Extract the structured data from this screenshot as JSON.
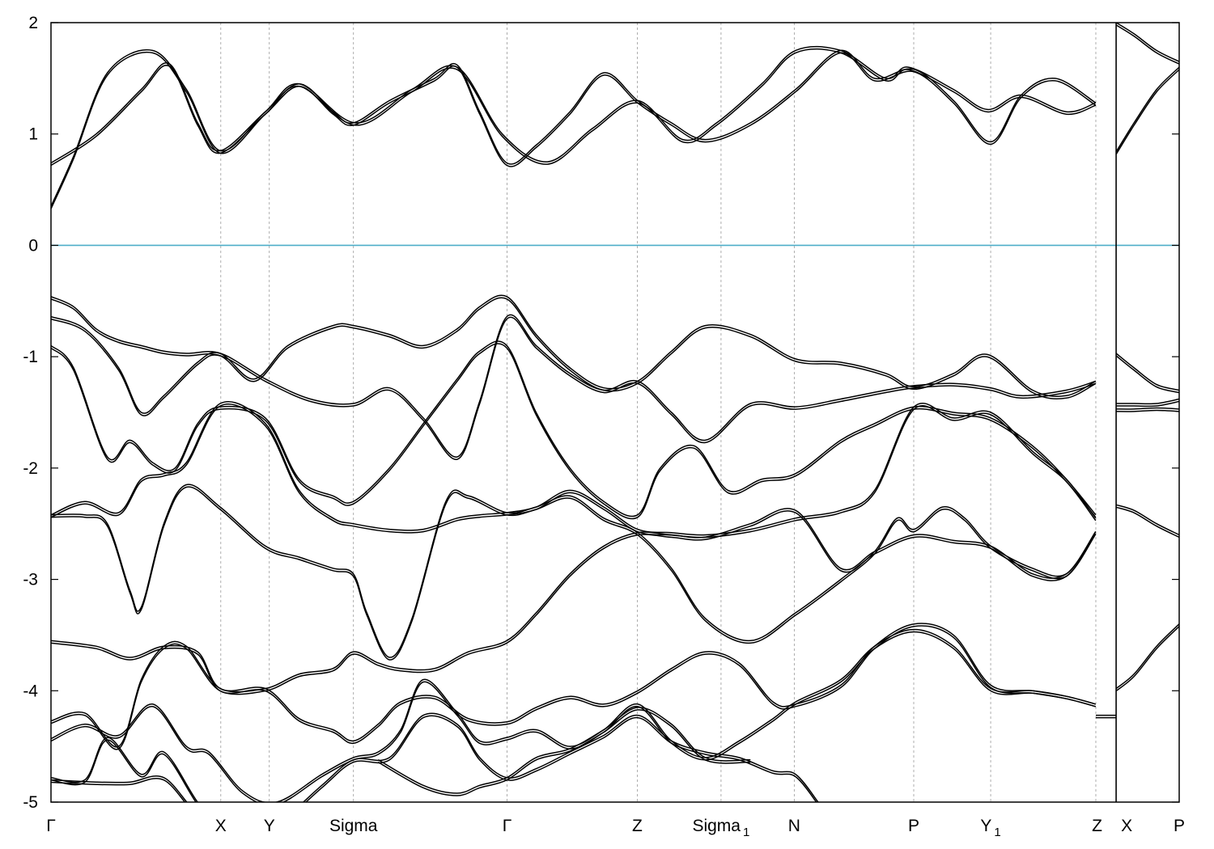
{
  "chart_data": {
    "type": "line",
    "title": "",
    "xlabel": "",
    "ylabel": "",
    "xlim": [
      0,
      1.0
    ],
    "ylim": [
      -5,
      2
    ],
    "yticks": [
      "2",
      "1",
      "0",
      "-1",
      "-2",
      "-3",
      "-4",
      "-5"
    ],
    "ytick_values": [
      2,
      1,
      0,
      -1,
      -2,
      -3,
      -4,
      -5
    ],
    "kpoints": [
      {
        "label": "Γ",
        "sub": "",
        "x": 0.0
      },
      {
        "label": "X",
        "sub": "",
        "x": 0.1505
      },
      {
        "label": "Y",
        "sub": "",
        "x": 0.1935
      },
      {
        "label": "Sigma",
        "sub": "",
        "x": 0.2681
      },
      {
        "label": "Γ",
        "sub": "",
        "x": 0.4043
      },
      {
        "label": "Z",
        "sub": "",
        "x": 0.5197
      },
      {
        "label": "Sigma",
        "sub": "1",
        "x": 0.5939
      },
      {
        "label": "N",
        "sub": "",
        "x": 0.6588
      },
      {
        "label": "P",
        "sub": "",
        "x": 0.7647
      },
      {
        "label": "Y",
        "sub": "1",
        "x": 0.8329
      },
      {
        "label": "Z",
        "sub": "",
        "x": 0.9261
      },
      {
        "label": "X",
        "sub": "",
        "x": 0.9441
      },
      {
        "label": "P",
        "sub": "",
        "x": 1.0
      }
    ],
    "break_at": 0.9441,
    "fermi_level": 0,
    "fermi_color": "#4eaec9",
    "line_color": "#000000",
    "grid": "vertical-dashed-at-kpoints",
    "series": [
      {
        "x": [
          0,
          0.02,
          0.05,
          0.09,
          0.12,
          0.15,
          0.19,
          0.22,
          0.27,
          0.32,
          0.36,
          0.4,
          0.44,
          0.48,
          0.52,
          0.56,
          0.59,
          0.63,
          0.66,
          0.7,
          0.74,
          0.76,
          0.8,
          0.83,
          0.86,
          0.9,
          0.926
        ],
        "y": [
          0.35,
          0.8,
          1.55,
          1.75,
          1.4,
          0.85,
          1.2,
          1.45,
          1.1,
          1.4,
          1.6,
          1.0,
          0.75,
          1.05,
          1.3,
          0.95,
          1.1,
          1.45,
          1.75,
          1.75,
          1.5,
          1.6,
          1.4,
          1.22,
          1.35,
          1.2,
          1.28
        ]
      },
      {
        "x": [
          0,
          0.04,
          0.08,
          0.105,
          0.13,
          0.15,
          0.19,
          0.22,
          0.25,
          0.268,
          0.3,
          0.34,
          0.36,
          0.38,
          0.404,
          0.43,
          0.46,
          0.49,
          0.52,
          0.55,
          0.58,
          0.62,
          0.66,
          0.7,
          0.73,
          0.765,
          0.8,
          0.833,
          0.86,
          0.89,
          0.926
        ],
        "y": [
          0.74,
          1.0,
          1.4,
          1.63,
          1.1,
          0.85,
          1.2,
          1.45,
          1.2,
          1.1,
          1.3,
          1.5,
          1.62,
          1.2,
          0.74,
          0.9,
          1.2,
          1.55,
          1.3,
          1.1,
          0.95,
          1.1,
          1.4,
          1.75,
          1.5,
          1.58,
          1.3,
          0.93,
          1.35,
          1.5,
          1.28
        ]
      },
      {
        "x": [
          0,
          0.02,
          0.04,
          0.06,
          0.08,
          0.1,
          0.12,
          0.15,
          0.18,
          0.21,
          0.25,
          0.268,
          0.3,
          0.33,
          0.36,
          0.38,
          0.404,
          0.43,
          0.46,
          0.49,
          0.52,
          0.55,
          0.58,
          0.62,
          0.66,
          0.7,
          0.74,
          0.765,
          0.8,
          0.83,
          0.87,
          0.9,
          0.926
        ],
        "y": [
          -0.46,
          -0.55,
          -0.75,
          -0.85,
          -0.9,
          -0.95,
          -0.97,
          -0.97,
          -1.2,
          -0.9,
          -0.72,
          -0.72,
          -0.8,
          -0.9,
          -0.75,
          -0.55,
          -0.46,
          -0.8,
          -1.1,
          -1.28,
          -1.22,
          -0.95,
          -0.72,
          -0.8,
          -1.02,
          -1.05,
          -1.15,
          -1.27,
          -1.15,
          -0.98,
          -1.3,
          -1.35,
          -1.22
        ]
      },
      {
        "x": [
          0,
          0.03,
          0.06,
          0.08,
          0.1,
          0.13,
          0.15,
          0.19,
          0.23,
          0.268,
          0.3,
          0.33,
          0.36,
          0.38,
          0.404,
          0.43,
          0.46,
          0.49,
          0.52,
          0.55,
          0.58,
          0.62,
          0.66,
          0.7,
          0.74,
          0.765,
          0.8,
          0.833,
          0.86,
          0.9,
          0.926
        ],
        "y": [
          -0.64,
          -0.75,
          -1.1,
          -1.5,
          -1.35,
          -1.05,
          -0.97,
          -1.2,
          -1.38,
          -1.42,
          -1.28,
          -1.55,
          -1.9,
          -1.4,
          -0.64,
          -0.9,
          -1.15,
          -1.3,
          -1.22,
          -1.5,
          -1.75,
          -1.42,
          -1.45,
          -1.38,
          -1.3,
          -1.26,
          -1.24,
          -1.28,
          -1.35,
          -1.3,
          -1.22
        ]
      },
      {
        "x": [
          0,
          0.02,
          0.05,
          0.07,
          0.09,
          0.11,
          0.13,
          0.15,
          0.19,
          0.22,
          0.25,
          0.268,
          0.3,
          0.33,
          0.36,
          0.38,
          0.404,
          0.43,
          0.46,
          0.49,
          0.52,
          0.54,
          0.57,
          0.6,
          0.63,
          0.66,
          0.7,
          0.73,
          0.765,
          0.8,
          0.833,
          0.87,
          0.9,
          0.926
        ],
        "y": [
          -0.9,
          -1.1,
          -1.9,
          -1.75,
          -1.95,
          -2.0,
          -1.6,
          -1.45,
          -1.55,
          -2.1,
          -2.25,
          -2.3,
          -2.0,
          -1.6,
          -1.2,
          -0.95,
          -0.9,
          -1.5,
          -2.0,
          -2.3,
          -2.42,
          -2.0,
          -1.8,
          -2.2,
          -2.1,
          -2.05,
          -1.75,
          -1.6,
          -1.45,
          -1.5,
          -1.55,
          -1.8,
          -2.1,
          -2.42
        ]
      },
      {
        "x": [
          0,
          0.03,
          0.06,
          0.08,
          0.1,
          0.12,
          0.15,
          0.19,
          0.22,
          0.25,
          0.268,
          0.3,
          0.33,
          0.36,
          0.38,
          0.404,
          0.43,
          0.46,
          0.49,
          0.52,
          0.55,
          0.58,
          0.62,
          0.66,
          0.7,
          0.73,
          0.765,
          0.8,
          0.833,
          0.87,
          0.9,
          0.926
        ],
        "y": [
          -2.42,
          -2.3,
          -2.4,
          -2.1,
          -2.05,
          -1.95,
          -1.42,
          -1.6,
          -2.2,
          -2.45,
          -2.5,
          -2.55,
          -2.55,
          -2.45,
          -2.42,
          -2.4,
          -2.35,
          -2.2,
          -2.35,
          -2.55,
          -2.58,
          -2.6,
          -2.55,
          -2.45,
          -2.38,
          -2.2,
          -1.45,
          -1.55,
          -1.5,
          -1.85,
          -2.1,
          -2.45
        ]
      },
      {
        "x": [
          0,
          0.03,
          0.05,
          0.07,
          0.08,
          0.1,
          0.12,
          0.15,
          0.19,
          0.22,
          0.25,
          0.268,
          0.28,
          0.3,
          0.32,
          0.35,
          0.37,
          0.404,
          0.43,
          0.46,
          0.49,
          0.52,
          0.55,
          0.58,
          0.62,
          0.66,
          0.7,
          0.73,
          0.75,
          0.765,
          0.79,
          0.81,
          0.833,
          0.87,
          0.9,
          0.926
        ],
        "y": [
          -2.42,
          -2.42,
          -2.5,
          -3.1,
          -3.25,
          -2.5,
          -2.15,
          -2.35,
          -2.7,
          -2.8,
          -2.9,
          -2.95,
          -3.3,
          -3.7,
          -3.35,
          -2.3,
          -2.25,
          -2.4,
          -2.35,
          -2.25,
          -2.45,
          -2.58,
          -2.9,
          -3.35,
          -3.55,
          -3.3,
          -3.0,
          -2.75,
          -2.45,
          -2.55,
          -2.35,
          -2.45,
          -2.7,
          -2.9,
          -2.95,
          -2.57
        ]
      },
      {
        "x": [
          0,
          0.04,
          0.07,
          0.1,
          0.13,
          0.15,
          0.19,
          0.22,
          0.25,
          0.268,
          0.29,
          0.31,
          0.34,
          0.37,
          0.404,
          0.43,
          0.46,
          0.49,
          0.52,
          0.55,
          0.58,
          0.62,
          0.66,
          0.7,
          0.73,
          0.765,
          0.8,
          0.833,
          0.87,
          0.9,
          0.926
        ],
        "y": [
          -3.55,
          -3.6,
          -3.7,
          -3.6,
          -3.65,
          -3.98,
          -3.98,
          -3.85,
          -3.8,
          -3.65,
          -3.75,
          -3.8,
          -3.8,
          -3.65,
          -3.55,
          -3.3,
          -2.95,
          -2.7,
          -2.58,
          -2.6,
          -2.62,
          -2.5,
          -2.38,
          -2.9,
          -2.75,
          -2.6,
          -2.65,
          -2.7,
          -2.95,
          -2.95,
          -2.57
        ]
      },
      {
        "x": [
          0,
          0.03,
          0.06,
          0.08,
          0.1,
          0.12,
          0.15,
          0.19,
          0.22,
          0.25,
          0.268,
          0.29,
          0.31,
          0.34,
          0.37,
          0.404,
          0.43,
          0.46,
          0.49,
          0.52,
          0.55,
          0.58,
          0.61,
          0.64,
          0.66,
          0.7,
          0.73,
          0.765,
          0.8,
          0.833,
          0.87,
          0.9,
          0.926
        ],
        "y": [
          -4.27,
          -4.2,
          -4.5,
          -3.9,
          -3.6,
          -3.6,
          -3.98,
          -3.98,
          -4.25,
          -4.35,
          -4.45,
          -4.3,
          -4.1,
          -4.05,
          -4.25,
          -4.28,
          -4.15,
          -4.05,
          -4.12,
          -4.0,
          -3.8,
          -3.65,
          -3.75,
          -4.1,
          -4.12,
          -3.95,
          -3.6,
          -3.4,
          -3.5,
          -3.95,
          -4.0,
          -4.05,
          -4.12
        ]
      },
      {
        "x": [
          0,
          0.03,
          0.06,
          0.09,
          0.12,
          0.14,
          0.17,
          0.2,
          0.24,
          0.268,
          0.29,
          0.31,
          0.33,
          0.36,
          0.38,
          0.404,
          0.43,
          0.46,
          0.49,
          0.52,
          0.55,
          0.58,
          0.61,
          0.64,
          0.66,
          0.7,
          0.73,
          0.765,
          0.8,
          0.833,
          0.87,
          0.9,
          0.926
        ],
        "y": [
          -4.43,
          -4.3,
          -4.4,
          -4.12,
          -4.5,
          -4.55,
          -4.9,
          -5.0,
          -4.75,
          -4.6,
          -4.55,
          -4.35,
          -3.9,
          -4.2,
          -4.45,
          -4.42,
          -4.35,
          -4.5,
          -4.35,
          -4.12,
          -4.45,
          -4.6,
          -4.45,
          -4.25,
          -4.1,
          -3.9,
          -3.6,
          -3.45,
          -3.6,
          -3.98,
          -4.0,
          -4.05,
          -4.12
        ]
      },
      {
        "x": [
          0,
          0.03,
          0.05,
          0.08,
          0.1,
          0.13,
          0.15,
          0.17,
          0.2,
          0.24,
          0.268,
          0.3,
          0.33,
          0.36,
          0.38,
          0.404,
          0.43,
          0.46,
          0.49,
          0.52,
          0.55,
          0.58,
          0.61,
          0.64,
          0.66,
          0.68
        ],
        "y": [
          -4.78,
          -4.8,
          -4.42,
          -4.75,
          -4.55,
          -5.0,
          -5.2,
          -5.3,
          -5.2,
          -4.85,
          -4.62,
          -4.6,
          -4.22,
          -4.3,
          -4.6,
          -4.78,
          -4.7,
          -4.55,
          -4.4,
          -4.22,
          -4.45,
          -4.55,
          -4.6,
          -4.72,
          -4.75,
          -5.0
        ]
      },
      {
        "x": [
          0,
          0.04,
          0.07,
          0.1,
          0.13,
          0.16
        ],
        "y": [
          -4.8,
          -4.82,
          -4.82,
          -4.78,
          -5.1,
          -5.2
        ]
      },
      {
        "x": [
          0.29,
          0.33,
          0.36,
          0.38,
          0.404,
          0.43,
          0.46,
          0.49,
          0.52,
          0.55,
          0.58,
          0.62
        ],
        "y": [
          -4.62,
          -4.85,
          -4.92,
          -4.85,
          -4.78,
          -4.6,
          -4.52,
          -4.35,
          -4.15,
          -4.3,
          -4.6,
          -4.62
        ]
      },
      {
        "x": [
          0.9441,
          0.96,
          0.98,
          1.0
        ],
        "y": [
          0.84,
          1.1,
          1.4,
          1.6
        ]
      },
      {
        "x": [
          0.9441,
          0.96,
          0.98,
          1.0
        ],
        "y": [
          2.0,
          1.9,
          1.75,
          1.65
        ]
      },
      {
        "x": [
          0.9441,
          0.96,
          0.98,
          1.0
        ],
        "y": [
          -0.97,
          -1.1,
          -1.25,
          -1.3
        ]
      },
      {
        "x": [
          0.9441,
          0.96,
          0.98,
          1.0
        ],
        "y": [
          -1.42,
          -1.42,
          -1.42,
          -1.38
        ]
      },
      {
        "x": [
          0.9441,
          0.96,
          0.98,
          1.0
        ],
        "y": [
          -1.47,
          -1.47,
          -1.46,
          -1.47
        ]
      },
      {
        "x": [
          0.9441,
          0.96,
          0.98,
          1.0
        ],
        "y": [
          -2.33,
          -2.38,
          -2.5,
          -2.6
        ]
      },
      {
        "x": [
          0.9441,
          0.96,
          0.98,
          1.0
        ],
        "y": [
          -3.98,
          -3.85,
          -3.6,
          -3.4
        ]
      },
      {
        "x": [
          0.9261,
          0.9441
        ],
        "y": [
          -4.22,
          -4.22
        ]
      }
    ]
  }
}
